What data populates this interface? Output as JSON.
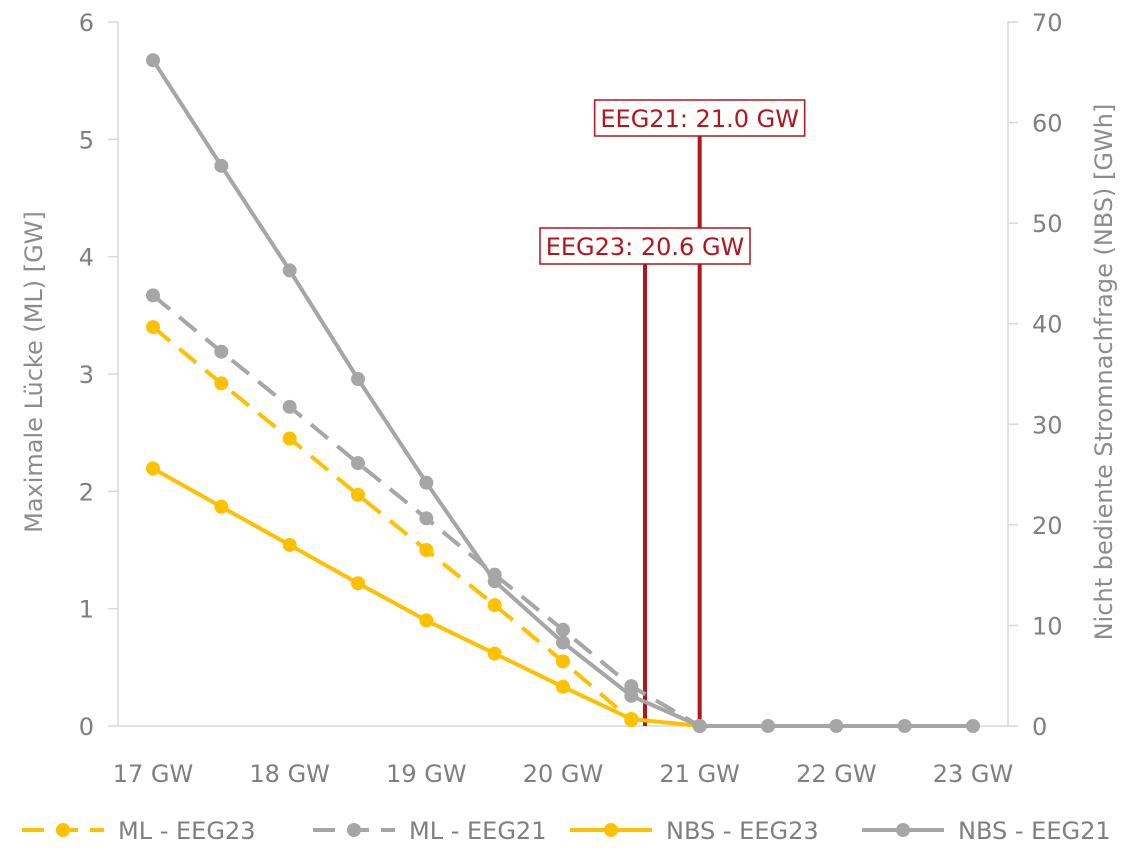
{
  "chart_data": {
    "type": "line",
    "categories": [
      "17 GW",
      "18 GW",
      "19 GW",
      "20 GW",
      "21 GW",
      "22 GW",
      "23 GW"
    ],
    "x": [
      17,
      17.5,
      18,
      18.5,
      19,
      19.5,
      20,
      20.5,
      21,
      21.5,
      22,
      22.5,
      23
    ],
    "x_range": [
      17,
      23
    ],
    "ylabel_left": "Maximale Lücke (ML) [GW]",
    "ylabel_right": "Nicht bediente Stromnachfrage (NBS) [GWh]",
    "ylim_left": [
      0,
      6
    ],
    "ylim_right": [
      0,
      70
    ],
    "yticks_left": [
      "0",
      "1",
      "2",
      "3",
      "4",
      "5",
      "6"
    ],
    "yticks_right": [
      "0",
      "10",
      "20",
      "30",
      "40",
      "50",
      "60",
      "70"
    ],
    "grid": false,
    "legend_position": "bottom",
    "series": [
      {
        "name": "ML - EEG23",
        "axis": "left",
        "style": "dashed",
        "color": "#FFC000",
        "x": [
          17,
          17.5,
          18,
          18.5,
          19,
          19.5,
          20,
          20.5
        ],
        "values": [
          3.4,
          2.92,
          2.45,
          1.97,
          1.5,
          1.03,
          0.55,
          0.05
        ]
      },
      {
        "name": "ML - EEG21",
        "axis": "left",
        "style": "dashed",
        "color": "#A6A6A6",
        "x": [
          17,
          17.5,
          18,
          18.5,
          19,
          19.5,
          20,
          20.5,
          21
        ],
        "values": [
          3.67,
          3.19,
          2.72,
          2.24,
          1.77,
          1.29,
          0.82,
          0.34,
          0.0
        ]
      },
      {
        "name": "NBS - EEG23",
        "axis": "right",
        "style": "solid",
        "color": "#FFC000",
        "x": [
          17,
          17.5,
          18,
          18.5,
          19,
          19.5,
          20,
          20.5,
          21
        ],
        "values": [
          25.6,
          21.8,
          18.0,
          14.2,
          10.5,
          7.2,
          3.9,
          0.7,
          0.0
        ]
      },
      {
        "name": "NBS - EEG21",
        "axis": "right",
        "style": "solid",
        "color": "#A6A6A6",
        "x": [
          17,
          17.5,
          18,
          18.5,
          19,
          19.5,
          20,
          20.5,
          21,
          21.5,
          22,
          22.5,
          23
        ],
        "values": [
          66.2,
          55.7,
          45.3,
          34.5,
          24.2,
          14.4,
          8.3,
          3.0,
          0.0,
          0.0,
          0.0,
          0.0,
          0.0
        ]
      }
    ],
    "annotations": [
      {
        "label": "EEG23: 20.6 GW",
        "x": 20.6,
        "color": "#B3141E"
      },
      {
        "label": "EEG21: 21.0 GW",
        "x": 21.0,
        "color": "#B3141E"
      }
    ]
  }
}
